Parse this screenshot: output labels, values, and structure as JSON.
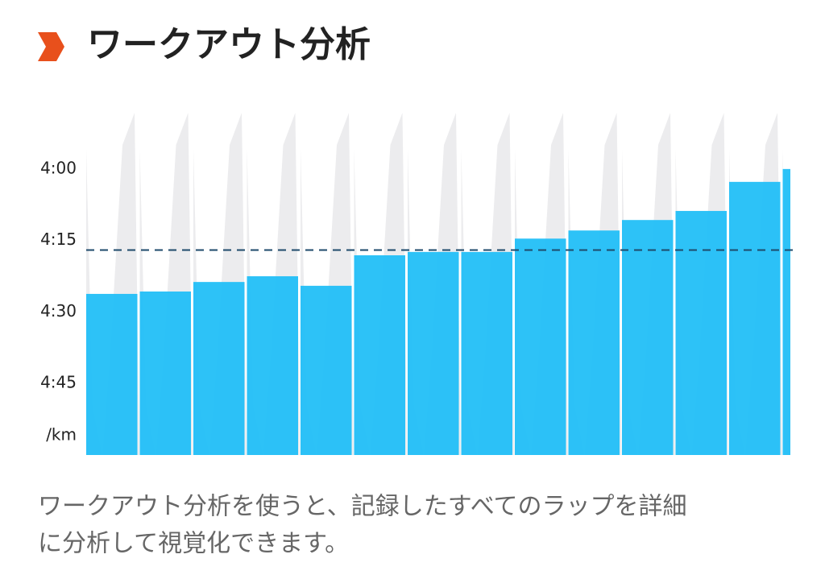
{
  "header": {
    "title": "ワークアウト分析"
  },
  "chart_data": {
    "type": "bar",
    "categories": [
      null,
      null,
      null,
      null,
      null,
      null,
      null,
      null,
      null,
      null,
      null,
      null,
      null,
      null
    ],
    "values": [
      266.2,
      265.7,
      263.7,
      262.5,
      264.5,
      258.1,
      257.4,
      257.4,
      254.6,
      252.9,
      250.7,
      248.8,
      242.7,
      240
    ],
    "color": "#22bff7",
    "ylim": [
      300,
      226
    ],
    "yticks": [
      {
        "value": 240,
        "label": "4:00"
      },
      {
        "value": 255,
        "label": "4:15"
      },
      {
        "value": 270,
        "label": "4:30"
      },
      {
        "value": 285,
        "label": "4:45"
      }
    ],
    "y_unit_label": "/km",
    "reference_line": {
      "value": 257,
      "color": "#1e4a6b"
    }
  },
  "description": [
    "ワークアウト分析を使うと、記録したすべてのラップを詳細",
    "に分析して視覚化できます。"
  ]
}
